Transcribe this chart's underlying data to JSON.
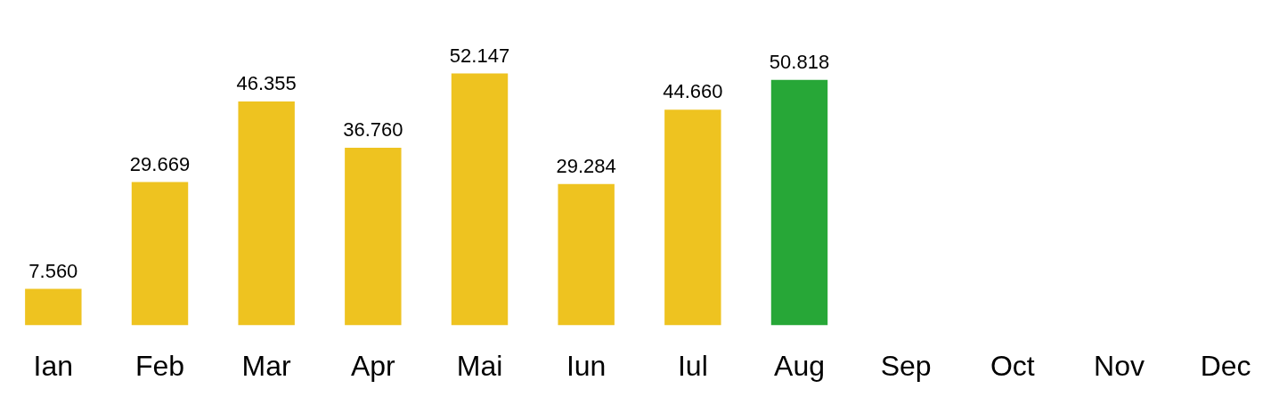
{
  "chart_data": {
    "type": "bar",
    "categories": [
      "Ian",
      "Feb",
      "Mar",
      "Apr",
      "Mai",
      "Iun",
      "Iul",
      "Aug",
      "Sep",
      "Oct",
      "Nov",
      "Dec"
    ],
    "values": [
      7560,
      29669,
      46355,
      36760,
      52147,
      29284,
      44660,
      50818,
      null,
      null,
      null,
      null
    ],
    "value_labels": [
      "7.560",
      "29.669",
      "46.355",
      "36.760",
      "52.147",
      "29.284",
      "44.660",
      "50.818",
      null,
      null,
      null,
      null
    ],
    "colors": [
      "#eec320",
      "#eec320",
      "#eec320",
      "#eec320",
      "#eec320",
      "#eec320",
      "#eec320",
      "#27a737",
      "#eec320",
      "#eec320",
      "#eec320",
      "#eec320"
    ],
    "grid": false,
    "legend": false,
    "tick_labels": "x"
  }
}
